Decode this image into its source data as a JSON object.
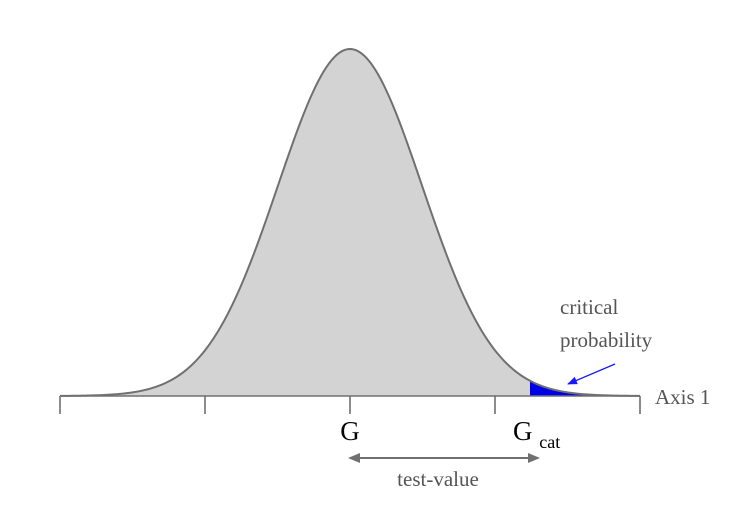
{
  "diagram": {
    "axis_label": "Axis 1",
    "center_label": "G",
    "critical_label_base": "G",
    "critical_label_sub": "cat",
    "critical_probability_line1": "critical",
    "critical_probability_line2": "probability",
    "test_value_label": "test-value",
    "colors": {
      "curve_fill": "#d3d3d3",
      "curve_stroke": "#707070",
      "tail_fill": "#0000e6",
      "annotation_arrow": "#1a1aff",
      "test_value_arrow": "#707070",
      "axis": "#707070",
      "label_text": "#555555",
      "g_text": "#000000"
    }
  }
}
